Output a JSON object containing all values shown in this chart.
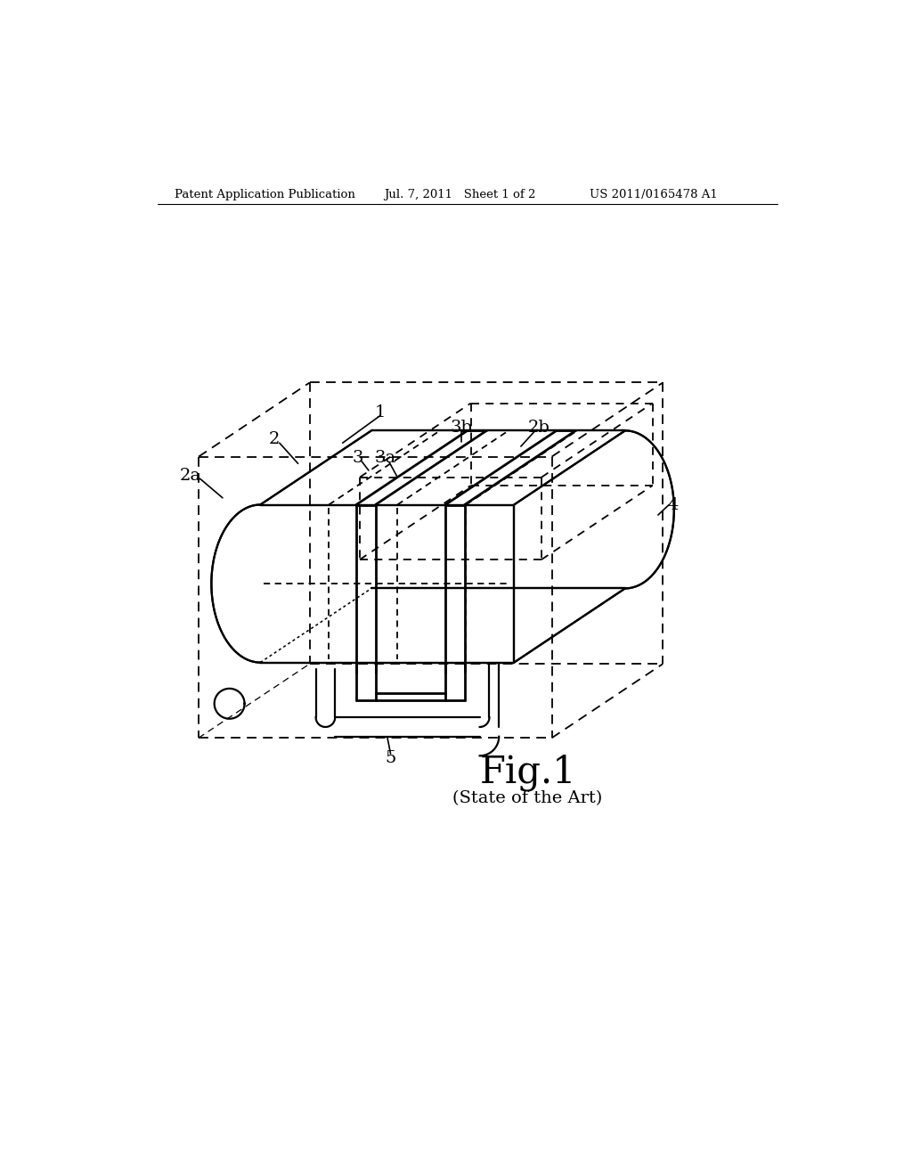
{
  "bg_color": "#ffffff",
  "line_color": "#000000",
  "header_left": "Patent Application Publication",
  "header_mid": "Jul. 7, 2011   Sheet 1 of 2",
  "header_right": "US 2011/0165478 A1",
  "fig_label": "Fig.1",
  "fig_sublabel": "(State of the Art)",
  "lw_main": 1.6,
  "lw_dash": 1.3,
  "lw_thick": 2.0
}
